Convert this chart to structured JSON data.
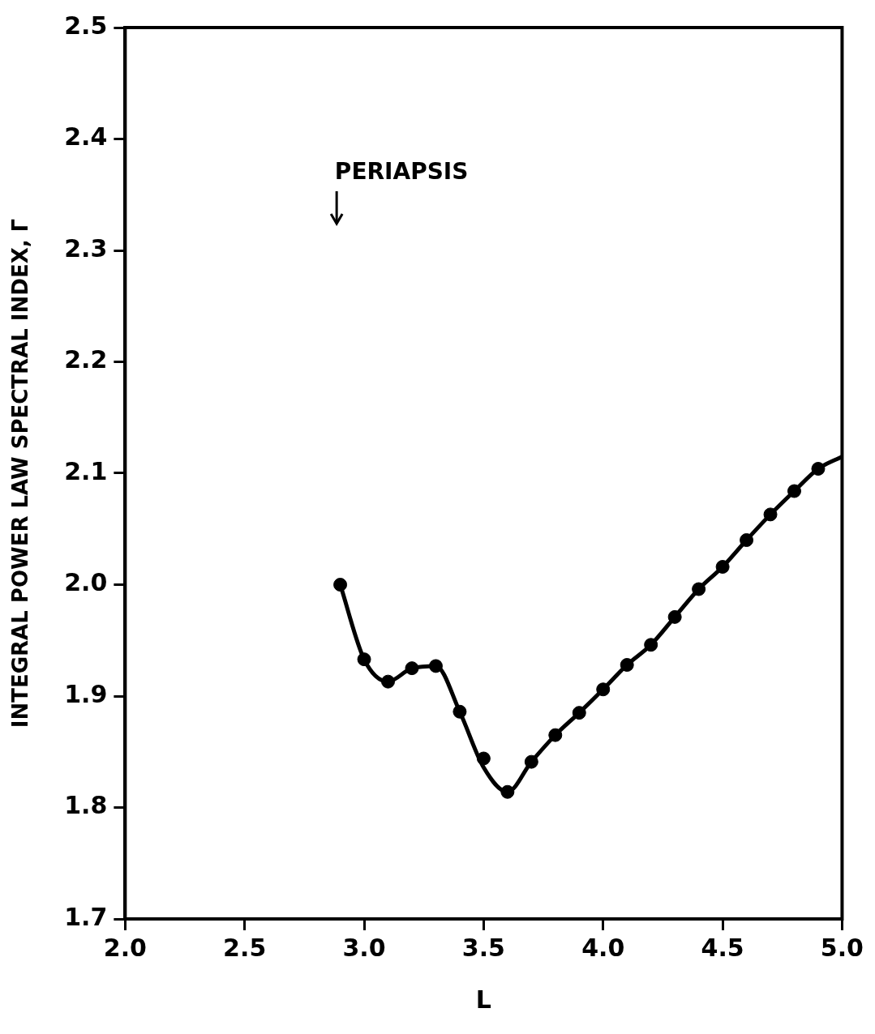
{
  "chart_data": {
    "type": "scatter",
    "xlabel": "L",
    "ylabel": "INTEGRAL POWER LAW SPECTRAL INDEX, Γ",
    "xlim": [
      2.0,
      5.0
    ],
    "ylim": [
      1.7,
      2.5
    ],
    "xticks": [
      {
        "value": 2,
        "label": "2.0"
      },
      2.5,
      {
        "value": 3,
        "label": "3.0"
      },
      3.5,
      {
        "value": 4,
        "label": "4.0"
      },
      4.5,
      {
        "value": 5,
        "label": "5.0"
      }
    ],
    "yticks": [
      1.7,
      1.8,
      1.9,
      {
        "value": 2,
        "label": "2.0"
      },
      2.1,
      2.2,
      2.3,
      2.4,
      2.5
    ],
    "grid": false,
    "legend": false,
    "annotations": [
      "PERIAPSIS"
    ],
    "series": [
      {
        "color": "#000000",
        "marker": "circle",
        "x": [
          2.9,
          3.0,
          3.1,
          3.2,
          3.3,
          3.4,
          3.5,
          3.6,
          3.7,
          3.8,
          3.9,
          4.0,
          4.1,
          4.2,
          4.3,
          4.4,
          4.5,
          4.6,
          4.7,
          4.8,
          4.9
        ],
        "values": [
          2.0,
          1.933,
          1.913,
          1.925,
          1.927,
          1.886,
          1.844,
          1.814,
          1.841,
          1.865,
          1.885,
          1.906,
          1.928,
          1.946,
          1.971,
          1.996,
          2.016,
          2.04,
          2.063,
          2.084,
          2.104
        ]
      },
      {
        "type": "line",
        "color": "#000000",
        "marker": "none",
        "x": [
          2.9,
          3.0,
          3.1,
          3.2,
          3.3,
          3.4,
          3.5,
          3.6,
          3.7,
          3.8,
          3.9,
          4.0,
          4.1,
          4.2,
          4.3,
          4.4,
          4.5,
          4.6,
          4.7,
          4.8,
          4.9,
          5.0
        ],
        "values": [
          2.0,
          1.933,
          1.913,
          1.925,
          1.927,
          1.886,
          1.836,
          1.814,
          1.841,
          1.865,
          1.885,
          1.906,
          1.928,
          1.946,
          1.971,
          1.996,
          2.016,
          2.04,
          2.063,
          2.084,
          2.104,
          2.115
        ]
      }
    ]
  }
}
